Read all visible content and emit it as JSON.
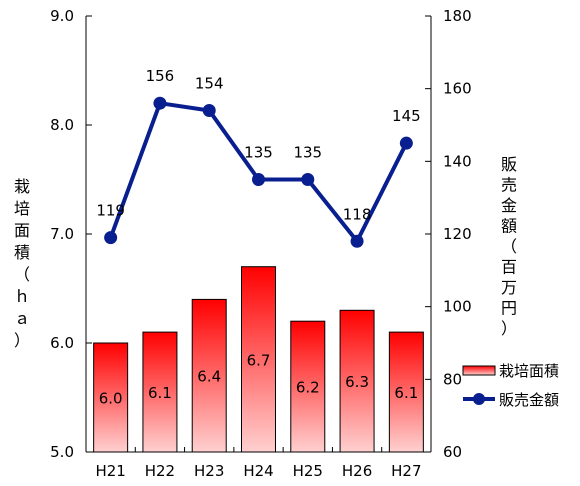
{
  "chart_data": {
    "type": "bar",
    "categories": [
      "H21",
      "H22",
      "H23",
      "H24",
      "H25",
      "H26",
      "H27"
    ],
    "series": [
      {
        "name": "栽培面積",
        "type": "bar",
        "axis": "left",
        "values": [
          6.0,
          6.1,
          6.4,
          6.7,
          6.2,
          6.3,
          6.1
        ],
        "labels": [
          "6.0",
          "6.1",
          "6.4",
          "6.7",
          "6.2",
          "6.3",
          "6.1"
        ],
        "color_top": "#ff0000",
        "color_bottom": "#ffd0d0"
      },
      {
        "name": "販売金額",
        "type": "line",
        "axis": "right",
        "values": [
          119,
          156,
          154,
          135,
          135,
          118,
          145
        ],
        "labels": [
          "119",
          "156",
          "154",
          "135",
          "135",
          "118",
          "145"
        ],
        "color": "#0a1f8f"
      }
    ],
    "y_left": {
      "label_chars": [
        "栽",
        "培",
        "面",
        "積",
        "（",
        "ｈ",
        "ａ",
        "）"
      ],
      "ticks": [
        "5.0",
        "6.0",
        "7.0",
        "8.0",
        "9.0"
      ],
      "ylim": [
        5.0,
        9.0
      ]
    },
    "y_right": {
      "label_chars": [
        "販",
        "売",
        "金",
        "額",
        "（",
        "百",
        "万",
        "円",
        "）"
      ],
      "ticks": [
        "60",
        "80",
        "100",
        "120",
        "140",
        "160",
        "180"
      ],
      "ylim": [
        60,
        180
      ]
    },
    "legend_position": "right"
  }
}
